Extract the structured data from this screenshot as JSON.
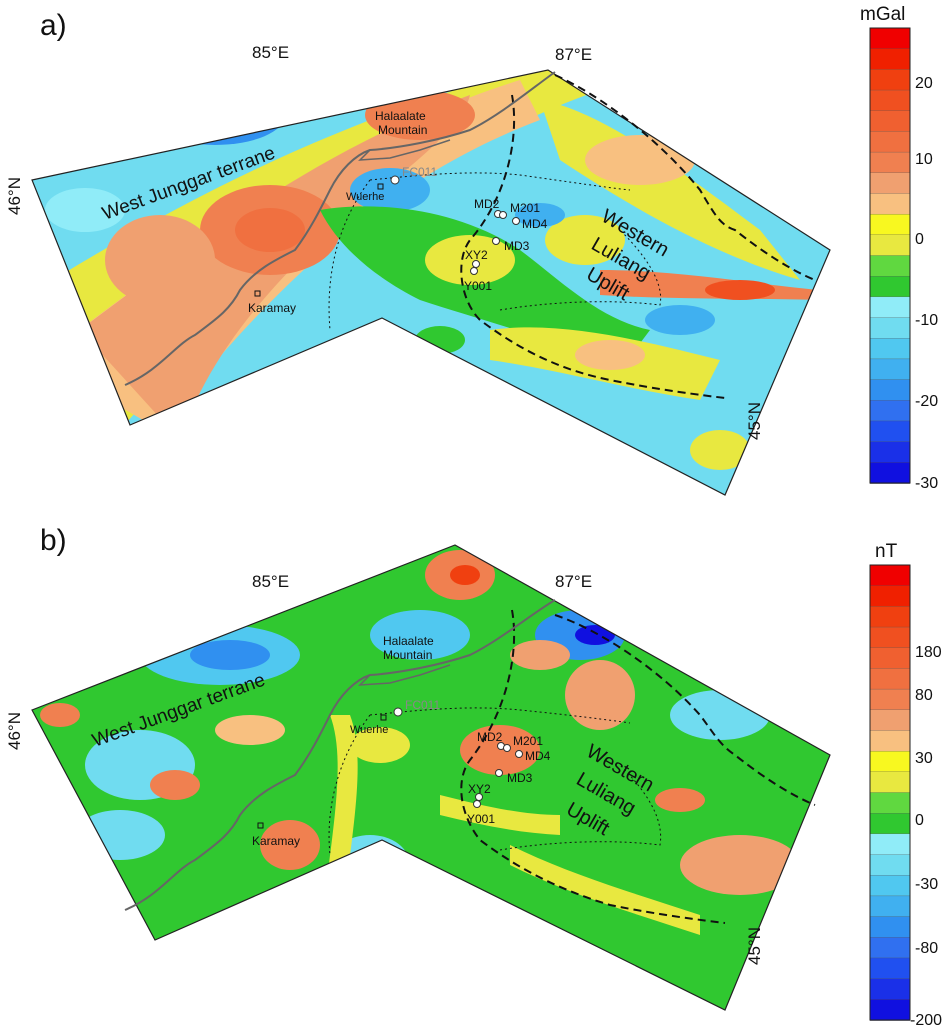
{
  "panels": [
    {
      "id": "a",
      "letter": "a)",
      "lon_labels": [
        "85°E",
        "87°E"
      ],
      "lat_labels": [
        "46°N",
        "45°N"
      ],
      "terrane_label": "West Junggar terrane",
      "mountain_label_1": "Halaalate",
      "mountain_label_2": "Mountain",
      "uplift_label_1": "Western",
      "uplift_label_2": "Luliang",
      "uplift_label_3": "Uplift",
      "town_wuerhe": "Wuerhe",
      "town_karamay": "Karamay",
      "wells": [
        "FC011",
        "MD2",
        "M201",
        "MD4",
        "MD3",
        "XY2",
        "Y001"
      ],
      "colorbar_unit": "mGal",
      "colorbar_ticks": [
        "20",
        "10",
        "0",
        "-10",
        "-20",
        "-30"
      ],
      "colorbar_tick_values": [
        20,
        10,
        0,
        -10,
        -20,
        -30
      ]
    },
    {
      "id": "b",
      "letter": "b)",
      "lon_labels": [
        "85°E",
        "87°E"
      ],
      "lat_labels": [
        "46°N",
        "45°N"
      ],
      "terrane_label": "West Junggar terrane",
      "mountain_label_1": "Halaalate",
      "mountain_label_2": "Mountain",
      "uplift_label_1": "Western",
      "uplift_label_2": "Luliang",
      "uplift_label_3": "Uplift",
      "town_wuerhe": "Wuerhe",
      "town_karamay": "Karamay",
      "wells": [
        "FC011",
        "MD2",
        "M201",
        "MD4",
        "MD3",
        "XY2",
        "Y001"
      ],
      "colorbar_unit": "nT",
      "colorbar_ticks": [
        "180",
        "80",
        "30",
        "0",
        "-30",
        "-80",
        "-200"
      ],
      "colorbar_tick_values": [
        180,
        80,
        30,
        0,
        -30,
        -80,
        -200
      ]
    }
  ],
  "colors": {
    "ramp": [
      "#1010e0",
      "#1a30e8",
      "#2050f0",
      "#3070f0",
      "#3090f0",
      "#40b0f0",
      "#50c8f0",
      "#70dcf0",
      "#90ecf8",
      "#30c830",
      "#60d840",
      "#e8e840",
      "#f8f820",
      "#f8c080",
      "#f0a070",
      "#f08050",
      "#f07040",
      "#f06030",
      "#f05020",
      "#f04010",
      "#f02000",
      "#f00000"
    ]
  }
}
